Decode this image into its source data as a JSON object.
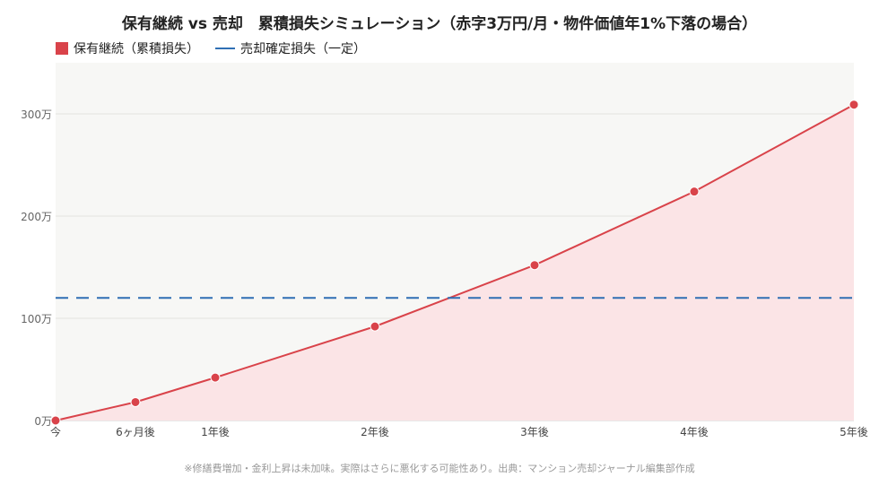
{
  "chart_data": {
    "type": "line",
    "title": "保有継続 vs 売却　累積損失シミュレーション（赤字3万円/月・物件価値年1%下落の場合）",
    "categories": [
      "今",
      "6ヶ月後",
      "1年後",
      "2年後",
      "3年後",
      "4年後",
      "5年後"
    ],
    "x_positions": [
      0,
      0.5,
      1,
      2,
      3,
      4,
      5
    ],
    "series": [
      {
        "name": "保有継続（累積損失）",
        "type": "area-line",
        "color": "#d9434a",
        "fill": "#fbe4e6",
        "values": [
          0,
          18,
          42,
          92,
          152,
          224,
          309
        ]
      },
      {
        "name": "売却確定損失（一定）",
        "type": "dashed-line",
        "color": "#2f6fb4",
        "values": [
          120,
          120,
          120,
          120,
          120,
          120,
          120
        ]
      }
    ],
    "ylim": [
      0,
      350
    ],
    "yticks": [
      0,
      100,
      200,
      300
    ],
    "ytick_labels": [
      "0万",
      "100万",
      "200万",
      "300万"
    ],
    "grid": true,
    "legend_position": "top-left",
    "footnote": "※修繕費増加・金利上昇は未加味。実際はさらに悪化する可能性あり。出典：マンション売却ジャーナル編集部作成"
  }
}
